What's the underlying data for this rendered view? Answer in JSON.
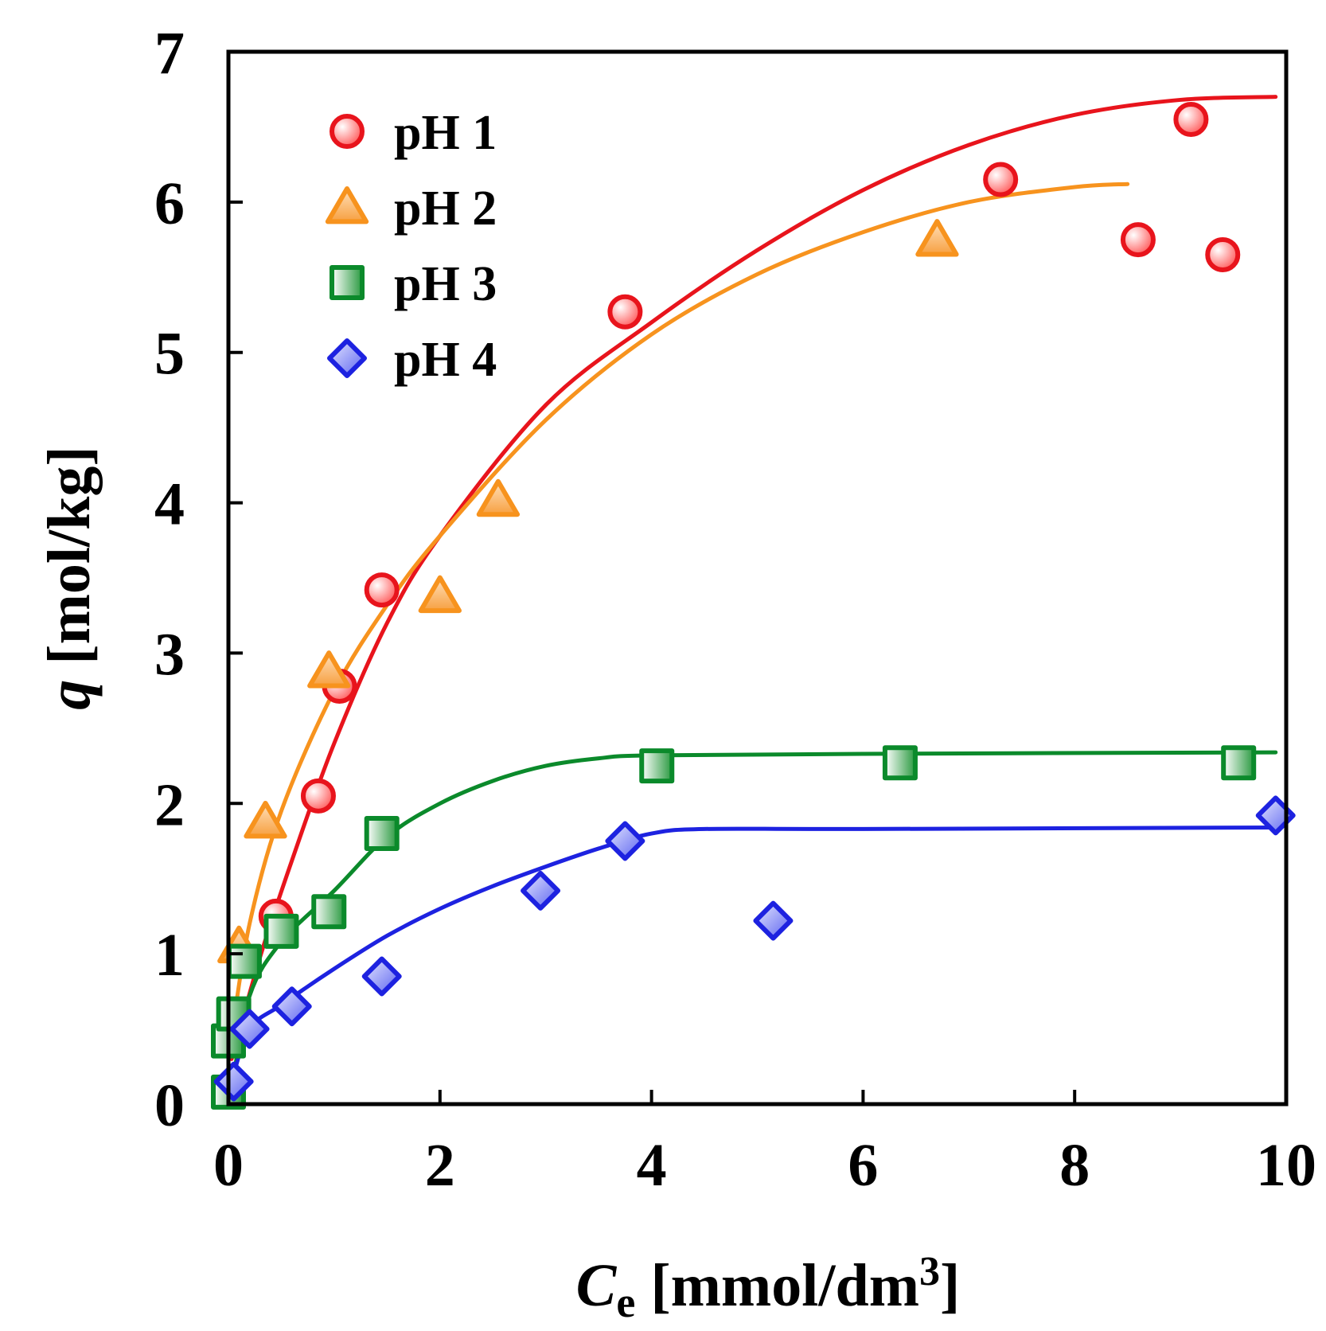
{
  "chart_data": {
    "type": "scatter",
    "xlabel": {
      "italic": "C",
      "sub": "e",
      "rest": " [mmol/dm",
      "sup": "3",
      "close": "]"
    },
    "ylabel": {
      "italic": "q",
      "rest": " [mol/kg]"
    },
    "xlim": [
      0,
      10
    ],
    "ylim": [
      0,
      7
    ],
    "xticks": [
      0,
      2,
      4,
      6,
      8,
      10
    ],
    "yticks": [
      0,
      1,
      2,
      3,
      4,
      5,
      6,
      7
    ],
    "xtick_labels": [
      "0",
      "2",
      "4",
      "6",
      "8",
      "10"
    ],
    "ytick_labels": [
      "0",
      "1",
      "2",
      "3",
      "4",
      "5",
      "6",
      "7"
    ],
    "grid": false,
    "legend_position": "top-left",
    "series": [
      {
        "name": "pH 1",
        "marker": "circle",
        "color": "#e8141c",
        "points": [
          [
            0.45,
            1.25
          ],
          [
            0.85,
            2.05
          ],
          [
            1.05,
            2.78
          ],
          [
            1.45,
            3.42
          ],
          [
            3.75,
            5.27
          ],
          [
            7.3,
            6.15
          ],
          [
            8.6,
            5.75
          ],
          [
            9.1,
            6.55
          ],
          [
            9.4,
            5.65
          ]
        ],
        "fit": [
          [
            0.03,
            0.3
          ],
          [
            0.3,
            0.98
          ],
          [
            0.6,
            1.62
          ],
          [
            1.0,
            2.4
          ],
          [
            1.5,
            3.2
          ],
          [
            2.0,
            3.78
          ],
          [
            3.0,
            4.65
          ],
          [
            4.0,
            5.2
          ],
          [
            5.0,
            5.68
          ],
          [
            6.0,
            6.08
          ],
          [
            7.0,
            6.38
          ],
          [
            8.0,
            6.58
          ],
          [
            9.0,
            6.68
          ],
          [
            9.9,
            6.7
          ]
        ]
      },
      {
        "name": "pH 2",
        "marker": "triangle",
        "color": "#f7931e",
        "points": [
          [
            0.1,
            1.05
          ],
          [
            0.35,
            1.88
          ],
          [
            0.95,
            2.88
          ],
          [
            2.0,
            3.38
          ],
          [
            2.55,
            4.02
          ],
          [
            6.7,
            5.75
          ]
        ],
        "fit": [
          [
            0.03,
            0.45
          ],
          [
            0.2,
            1.2
          ],
          [
            0.5,
            1.95
          ],
          [
            1.0,
            2.75
          ],
          [
            1.5,
            3.32
          ],
          [
            2.0,
            3.78
          ],
          [
            3.0,
            4.55
          ],
          [
            4.0,
            5.12
          ],
          [
            5.0,
            5.52
          ],
          [
            6.0,
            5.8
          ],
          [
            7.0,
            6.0
          ],
          [
            8.0,
            6.1
          ],
          [
            8.5,
            6.12
          ]
        ]
      },
      {
        "name": "pH 3",
        "marker": "square",
        "color": "#0b8a2b",
        "points": [
          [
            0.0,
            0.08
          ],
          [
            0.0,
            0.42
          ],
          [
            0.05,
            0.6
          ],
          [
            0.15,
            0.95
          ],
          [
            0.5,
            1.15
          ],
          [
            0.95,
            1.28
          ],
          [
            1.45,
            1.8
          ],
          [
            4.05,
            2.25
          ],
          [
            6.35,
            2.27
          ],
          [
            9.55,
            2.27
          ]
        ],
        "fit": [
          [
            0.03,
            0.1
          ],
          [
            0.2,
            0.72
          ],
          [
            0.5,
            1.08
          ],
          [
            1.0,
            1.42
          ],
          [
            1.5,
            1.78
          ],
          [
            2.0,
            2.0
          ],
          [
            2.5,
            2.15
          ],
          [
            3.0,
            2.25
          ],
          [
            3.5,
            2.3
          ],
          [
            4.0,
            2.32
          ],
          [
            6.0,
            2.33
          ],
          [
            9.9,
            2.34
          ]
        ]
      },
      {
        "name": "pH 4",
        "marker": "diamond",
        "color": "#1d22e0",
        "points": [
          [
            0.05,
            0.15
          ],
          [
            0.2,
            0.5
          ],
          [
            0.6,
            0.65
          ],
          [
            1.45,
            0.85
          ],
          [
            2.95,
            1.42
          ],
          [
            3.75,
            1.75
          ],
          [
            5.15,
            1.22
          ],
          [
            9.9,
            1.92
          ]
        ],
        "fit": [
          [
            0.03,
            0.15
          ],
          [
            0.2,
            0.5
          ],
          [
            0.5,
            0.66
          ],
          [
            1.0,
            0.9
          ],
          [
            1.5,
            1.12
          ],
          [
            2.0,
            1.3
          ],
          [
            2.5,
            1.45
          ],
          [
            3.0,
            1.58
          ],
          [
            3.5,
            1.7
          ],
          [
            4.0,
            1.8
          ],
          [
            4.5,
            1.83
          ],
          [
            6.0,
            1.83
          ],
          [
            9.9,
            1.84
          ]
        ]
      }
    ]
  }
}
